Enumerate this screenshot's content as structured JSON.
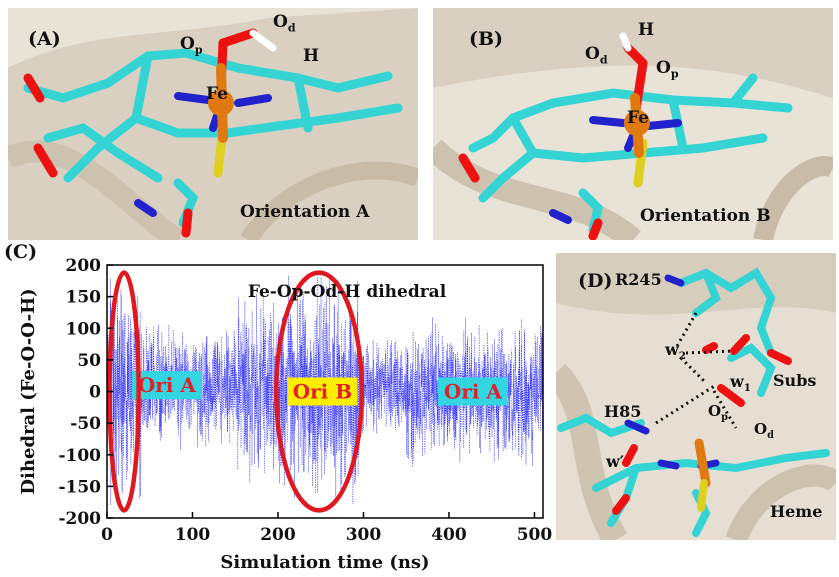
{
  "panels": {
    "a": {
      "label": "(A)",
      "orientation": "Orientation A",
      "atoms": {
        "fe": "Fe",
        "op": "O",
        "op_sub": "p",
        "od": "O",
        "od_sub": "d",
        "h": "H"
      }
    },
    "b": {
      "label": "(B)",
      "orientation": "Orientation B",
      "atoms": {
        "fe": "Fe",
        "op": "O",
        "op_sub": "p",
        "od": "O",
        "od_sub": "d",
        "h": "H"
      }
    },
    "c": {
      "label": "(C)"
    },
    "d": {
      "label": "(D)",
      "residues": {
        "r245": "R245",
        "h85": "H85",
        "subs": "Subs",
        "heme": "Heme"
      },
      "waters": {
        "w2": "w",
        "w2_sub": "2",
        "w1": "w",
        "w1_sub": "1",
        "wprime": "w′"
      },
      "atoms": {
        "op": "O",
        "op_sub": "p",
        "od": "O",
        "od_sub": "d"
      }
    }
  },
  "chart_data": {
    "type": "scatter",
    "title": "Fe-Op-Od-H dihedral",
    "xlabel": "Simulation time (ns)",
    "ylabel": "Dihedral (Fe-O-O-H)",
    "xlim": [
      0,
      510
    ],
    "ylim": [
      -200,
      200
    ],
    "xticks": [
      0,
      100,
      200,
      300,
      400,
      500
    ],
    "yticks": [
      -200,
      -150,
      -100,
      -50,
      0,
      50,
      100,
      150,
      200
    ],
    "series_color": "#1a1aff",
    "grid": false,
    "density_profile": [
      {
        "t_start": 0,
        "t_end": 40,
        "y_low": -180,
        "y_high": 180
      },
      {
        "t_start": 40,
        "t_end": 150,
        "y_low": -95,
        "y_high": 110
      },
      {
        "t_start": 150,
        "t_end": 205,
        "y_low": -150,
        "y_high": 155
      },
      {
        "t_start": 205,
        "t_end": 295,
        "y_low": -185,
        "y_high": 185
      },
      {
        "t_start": 295,
        "t_end": 350,
        "y_low": -70,
        "y_high": 85
      },
      {
        "t_start": 350,
        "t_end": 510,
        "y_low": -120,
        "y_high": 120
      }
    ],
    "annotations": [
      {
        "text": "Ori A",
        "x": 70,
        "y": 10,
        "bg": "#33d6e0",
        "fg": "#e0202a"
      },
      {
        "text": "Ori B",
        "x": 252,
        "y": 0,
        "bg": "#ffee00",
        "fg": "#e0202a"
      },
      {
        "text": "Ori A",
        "x": 428,
        "y": 0,
        "bg": "#33d6e0",
        "fg": "#e0202a"
      }
    ],
    "highlights": [
      {
        "x_center": 20,
        "x_half_width": 17,
        "y_low": -188,
        "y_high": 188,
        "color": "#e0181f"
      },
      {
        "x_center": 248,
        "x_half_width": 50,
        "y_low": -188,
        "y_high": 188,
        "color": "#e0181f"
      }
    ]
  }
}
